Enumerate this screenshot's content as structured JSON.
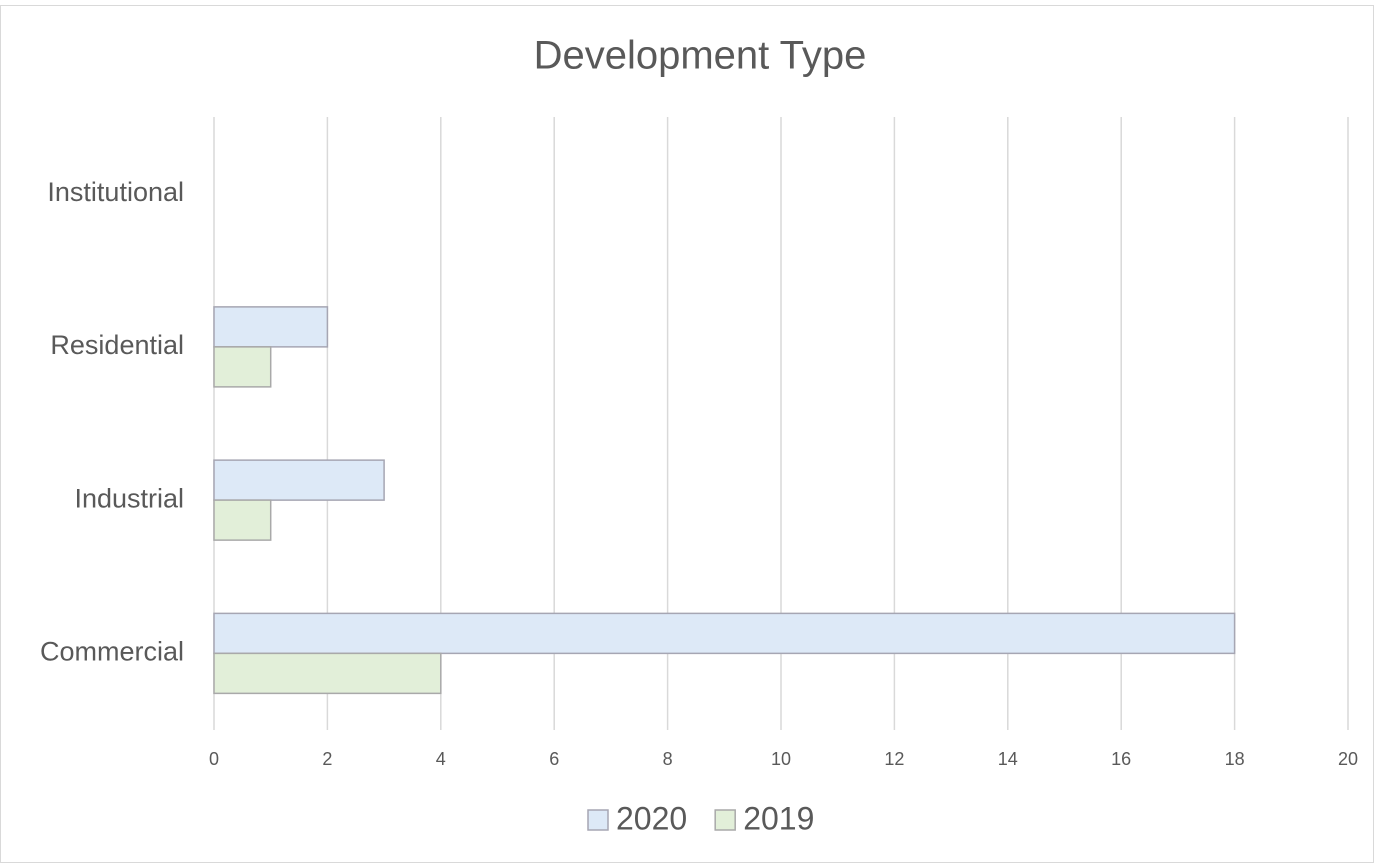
{
  "chart_data": {
    "type": "bar",
    "orientation": "horizontal",
    "title": "Development Type",
    "categories": [
      "Commercial",
      "Industrial",
      "Residential",
      "Institutional"
    ],
    "series": [
      {
        "name": "2020",
        "color": "#dde9f7",
        "values": [
          18,
          3,
          2,
          0
        ]
      },
      {
        "name": "2019",
        "color": "#e2efd9",
        "values": [
          4,
          1,
          1,
          0
        ]
      }
    ],
    "xlim": [
      0,
      20
    ],
    "xticks": [
      0,
      2,
      4,
      6,
      8,
      10,
      12,
      14,
      16,
      18,
      20
    ],
    "grid": true,
    "legend": "bottom"
  }
}
